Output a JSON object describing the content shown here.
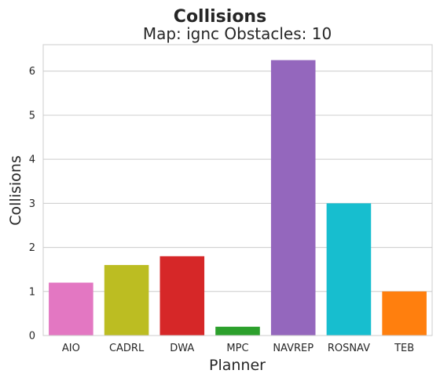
{
  "chart_data": {
    "type": "bar",
    "title": "Collisions",
    "subtitle": "Map: ignc Obstacles: 10",
    "xlabel": "Planner",
    "ylabel": "Collisions",
    "categories": [
      "AIO",
      "CADRL",
      "DWA",
      "MPC",
      "NAVREP",
      "ROSNAV",
      "TEB"
    ],
    "values": [
      1.2,
      1.6,
      1.8,
      0.2,
      6.25,
      3.0,
      1.0
    ],
    "colors": [
      "#e377c2",
      "#bcbd22",
      "#d62728",
      "#2ca02c",
      "#9467bd",
      "#17becf",
      "#ff7f0e"
    ],
    "ylim": [
      0,
      6.6
    ],
    "yticks": [
      "0",
      "1",
      "2",
      "3",
      "4",
      "5",
      "6"
    ],
    "grid": true,
    "legend": "none"
  }
}
